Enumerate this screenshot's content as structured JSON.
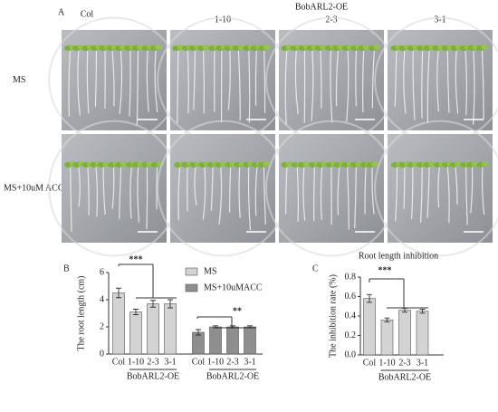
{
  "panel_a": {
    "label": "A",
    "group_label": "BobARL2-OE",
    "columns": [
      "Col",
      "1-10",
      "2-3",
      "3-1"
    ],
    "rows": [
      "MS",
      "MS+10uM ACC"
    ]
  },
  "chart_data": [
    {
      "type": "bar",
      "panel": "B",
      "ylabel": "The root length (cm)",
      "categories": [
        "Col",
        "1-10",
        "2-3",
        "3-1"
      ],
      "group_label": "BobARL2-OE",
      "series": [
        {
          "name": "MS",
          "color": "#d3d3d3",
          "values": [
            4.5,
            3.1,
            3.7,
            3.7
          ],
          "errors": [
            0.35,
            0.2,
            0.25,
            0.3
          ]
        },
        {
          "name": "MS+10uMACC",
          "color": "#8e8e8e",
          "values": [
            1.6,
            2.0,
            2.0,
            2.0
          ],
          "errors": [
            0.2,
            0.08,
            0.08,
            0.08
          ]
        }
      ],
      "ylim": [
        0,
        6
      ],
      "yticks": [
        0,
        2,
        4,
        6
      ],
      "annotations": [
        "***",
        "**"
      ]
    },
    {
      "type": "bar",
      "panel": "C",
      "title": "Root length inhibition",
      "ylabel": "The inhibition rate (%)",
      "categories": [
        "Col",
        "1-10",
        "2-3",
        "3-1"
      ],
      "group_label": "BobARL2-OE",
      "series": [
        {
          "color": "#d3d3d3",
          "values": [
            0.58,
            0.36,
            0.46,
            0.45
          ],
          "errors": [
            0.04,
            0.02,
            0.02,
            0.02
          ]
        }
      ],
      "ylim": [
        0,
        0.8
      ],
      "yticks": [
        {
          "value": 0,
          "label": "0.0"
        },
        0.2,
        0.4,
        0.6,
        0.8
      ],
      "annotations": [
        "***"
      ]
    }
  ]
}
